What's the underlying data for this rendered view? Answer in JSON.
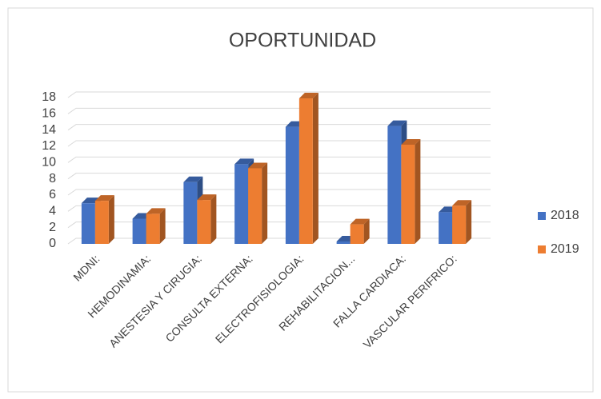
{
  "chart_data": {
    "type": "bar3d",
    "title": "OPORTUNIDAD",
    "categories": [
      "MDNI:",
      "HEMODINAMIA:",
      "ANESTESIA Y CIRUGIA:",
      "CONSULTA EXTERNA:",
      "ELECTROFISIOLOGIA:",
      "REHABILITACION...",
      "FALLA CARDIACA:",
      "VASCULAR PERIFRICO:"
    ],
    "series": [
      {
        "name": "2018",
        "color": "#4472c4",
        "values": [
          5,
          3.1,
          7.6,
          9.8,
          14.4,
          0.3,
          14.5,
          3.9
        ]
      },
      {
        "name": "2019",
        "color": "#ed7d31",
        "values": [
          5.3,
          3.7,
          5.4,
          9.3,
          17.9,
          2.4,
          12.2,
          4.7
        ]
      }
    ],
    "ylim": [
      0,
      18
    ],
    "yticks": [
      0,
      2,
      4,
      6,
      8,
      10,
      12,
      14,
      16,
      18
    ],
    "grid": true,
    "legend": "right"
  }
}
